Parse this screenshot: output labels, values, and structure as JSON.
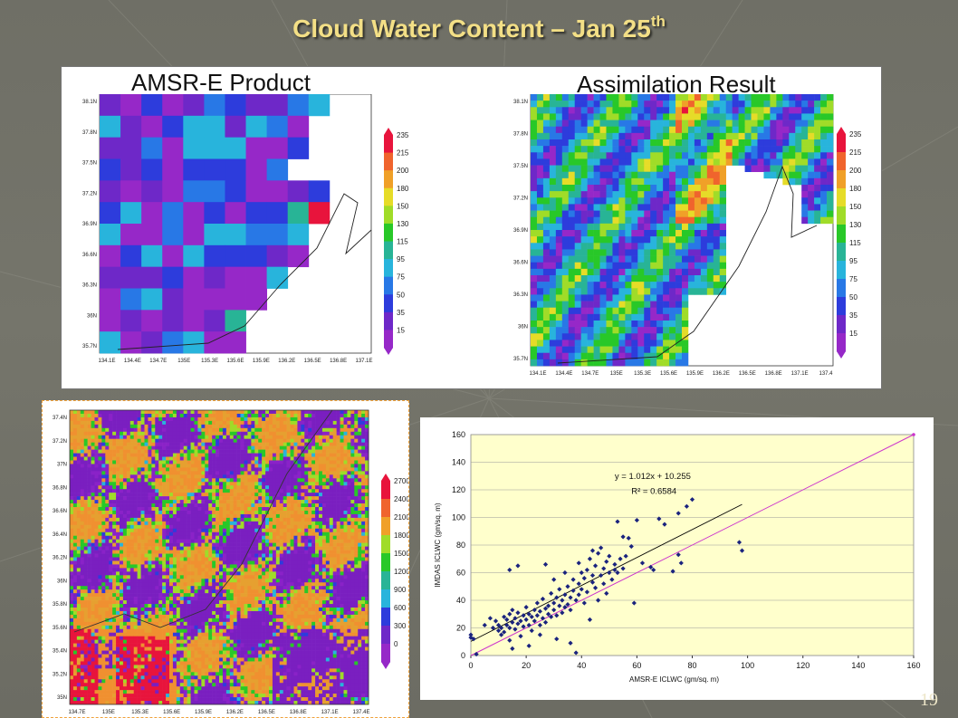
{
  "slide": {
    "title_main": "Cloud Water Content – Jan 25",
    "title_sup": "th",
    "page_number": "19"
  },
  "top_left_map": {
    "label": "AMSR-E Product",
    "lat_ticks": [
      "38.1N",
      "37.8N",
      "37.5N",
      "37.2N",
      "36.9N",
      "36.6N",
      "36.3N",
      "36N",
      "35.7N"
    ],
    "lon_ticks": [
      "134.1E",
      "134.4E",
      "134.7E",
      "135E",
      "135.3E",
      "135.6E",
      "135.9E",
      "136.2E",
      "136.5E",
      "136.8E",
      "137.1E"
    ],
    "colorbar": [
      "235",
      "215",
      "200",
      "180",
      "150",
      "130",
      "115",
      "95",
      "75",
      "50",
      "35",
      "15"
    ]
  },
  "top_right_map": {
    "label": "Assimilation Result",
    "lat_ticks": [
      "38.1N",
      "37.8N",
      "37.5N",
      "37.2N",
      "36.9N",
      "36.6N",
      "36.3N",
      "36N",
      "35.7N"
    ],
    "lon_ticks": [
      "134.1E",
      "134.4E",
      "134.7E",
      "135E",
      "135.3E",
      "135.6E",
      "135.9E",
      "136.2E",
      "136.5E",
      "136.8E",
      "137.1E",
      "137.4"
    ],
    "colorbar": [
      "235",
      "215",
      "200",
      "180",
      "150",
      "130",
      "115",
      "95",
      "75",
      "50",
      "35",
      "15"
    ]
  },
  "bottom_map": {
    "lat_ticks": [
      "37.4N",
      "37.2N",
      "37N",
      "36.8N",
      "36.6N",
      "36.4N",
      "36.2N",
      "36N",
      "35.8N",
      "35.6N",
      "35.4N",
      "35.2N",
      "35N"
    ],
    "lon_ticks": [
      "134.7E",
      "135E",
      "135.3E",
      "135.6E",
      "135.9E",
      "136.2E",
      "136.5E",
      "136.8E",
      "137.1E",
      "137.4E"
    ],
    "colorbar": [
      "2700",
      "2400",
      "2100",
      "1800",
      "1500",
      "1200",
      "900",
      "600",
      "300",
      "0"
    ]
  },
  "colors": {
    "title": "#f3df86",
    "slide_bg": "#707067",
    "plot_area": "#ffffcc",
    "scatter_point": "#1a237e",
    "identity_line": "#cc33cc",
    "trend_line": "#000000",
    "colorbar_scale": [
      "#e8143c",
      "#f0642d",
      "#f0a028",
      "#e6dc28",
      "#a0dc28",
      "#28c828",
      "#28b496",
      "#28b4dc",
      "#2878e6",
      "#2d3cdc",
      "#6e28c8",
      "#9628c8"
    ]
  },
  "chart_data": {
    "type": "scatter",
    "xlabel": "AMSR-E ICLWC (gm/sq. m)",
    "ylabel": "IMDAS ICLWC (gm/sq. m)",
    "xlim": [
      0,
      160
    ],
    "ylim": [
      0,
      160
    ],
    "x_ticks": [
      "0",
      "20",
      "40",
      "60",
      "80",
      "100",
      "120",
      "140",
      "160"
    ],
    "y_ticks": [
      "0",
      "20",
      "40",
      "60",
      "80",
      "100",
      "120",
      "140",
      "160"
    ],
    "grid": "horizontal",
    "equation": "y = 1.012x + 10.255",
    "r2": "R² = 0.6584",
    "trend": {
      "slope": 1.012,
      "intercept": 10.255,
      "x_range": [
        0,
        98
      ]
    },
    "identity_line": {
      "x_range": [
        0,
        160
      ]
    },
    "points": [
      [
        0,
        15
      ],
      [
        0,
        13
      ],
      [
        1,
        12
      ],
      [
        2,
        1
      ],
      [
        5,
        22
      ],
      [
        7,
        27
      ],
      [
        8,
        20
      ],
      [
        9,
        25
      ],
      [
        10,
        18
      ],
      [
        10,
        22
      ],
      [
        11,
        20
      ],
      [
        11,
        15
      ],
      [
        12,
        28
      ],
      [
        12,
        17
      ],
      [
        13,
        22
      ],
      [
        13,
        26
      ],
      [
        14,
        20
      ],
      [
        14,
        30
      ],
      [
        14,
        11
      ],
      [
        15,
        33
      ],
      [
        15,
        24
      ],
      [
        16,
        19
      ],
      [
        16,
        27
      ],
      [
        17,
        23
      ],
      [
        17,
        31
      ],
      [
        18,
        25
      ],
      [
        18,
        14
      ],
      [
        19,
        29
      ],
      [
        19,
        21
      ],
      [
        20,
        26
      ],
      [
        20,
        35
      ],
      [
        21,
        22
      ],
      [
        21,
        30
      ],
      [
        22,
        28
      ],
      [
        22,
        18
      ],
      [
        23,
        33
      ],
      [
        23,
        25
      ],
      [
        24,
        38
      ],
      [
        24,
        29
      ],
      [
        25,
        22
      ],
      [
        25,
        32
      ],
      [
        26,
        27
      ],
      [
        26,
        41
      ],
      [
        27,
        34
      ],
      [
        27,
        24
      ],
      [
        28,
        36
      ],
      [
        28,
        30
      ],
      [
        29,
        28
      ],
      [
        29,
        45
      ],
      [
        30,
        33
      ],
      [
        30,
        38
      ],
      [
        31,
        29
      ],
      [
        31,
        42
      ],
      [
        32,
        36
      ],
      [
        32,
        48
      ],
      [
        33,
        31
      ],
      [
        33,
        40
      ],
      [
        34,
        44
      ],
      [
        34,
        35
      ],
      [
        35,
        37
      ],
      [
        35,
        50
      ],
      [
        36,
        42
      ],
      [
        36,
        33
      ],
      [
        37,
        47
      ],
      [
        37,
        55
      ],
      [
        38,
        40
      ],
      [
        38,
        2
      ],
      [
        39,
        52
      ],
      [
        39,
        44
      ],
      [
        40,
        60
      ],
      [
        40,
        48
      ],
      [
        41,
        38
      ],
      [
        41,
        56
      ],
      [
        42,
        62
      ],
      [
        42,
        46
      ],
      [
        43,
        26
      ],
      [
        43,
        70
      ],
      [
        44,
        53
      ],
      [
        44,
        58
      ],
      [
        45,
        65
      ],
      [
        45,
        49
      ],
      [
        46,
        74
      ],
      [
        46,
        40
      ],
      [
        47,
        58
      ],
      [
        47,
        78
      ],
      [
        48,
        63
      ],
      [
        48,
        52
      ],
      [
        49,
        68
      ],
      [
        49,
        45
      ],
      [
        50,
        60
      ],
      [
        50,
        72
      ],
      [
        51,
        55
      ],
      [
        52,
        66
      ],
      [
        52,
        62
      ],
      [
        53,
        97
      ],
      [
        53,
        60
      ],
      [
        54,
        70
      ],
      [
        55,
        63
      ],
      [
        55,
        86
      ],
      [
        56,
        72
      ],
      [
        57,
        85
      ],
      [
        58,
        79
      ],
      [
        59,
        38
      ],
      [
        60,
        98
      ],
      [
        62,
        67
      ],
      [
        65,
        64
      ],
      [
        66,
        62
      ],
      [
        68,
        99
      ],
      [
        70,
        95
      ],
      [
        73,
        61
      ],
      [
        75,
        103
      ],
      [
        75,
        73
      ],
      [
        76,
        67
      ],
      [
        78,
        108
      ],
      [
        80,
        113
      ],
      [
        97,
        82
      ],
      [
        98,
        76
      ],
      [
        14,
        62
      ],
      [
        17,
        65
      ],
      [
        27,
        66
      ],
      [
        30,
        55
      ],
      [
        34,
        60
      ],
      [
        39,
        67
      ],
      [
        44,
        76
      ],
      [
        31,
        12
      ],
      [
        36,
        9
      ],
      [
        25,
        15
      ],
      [
        21,
        7
      ],
      [
        15,
        5
      ]
    ]
  }
}
